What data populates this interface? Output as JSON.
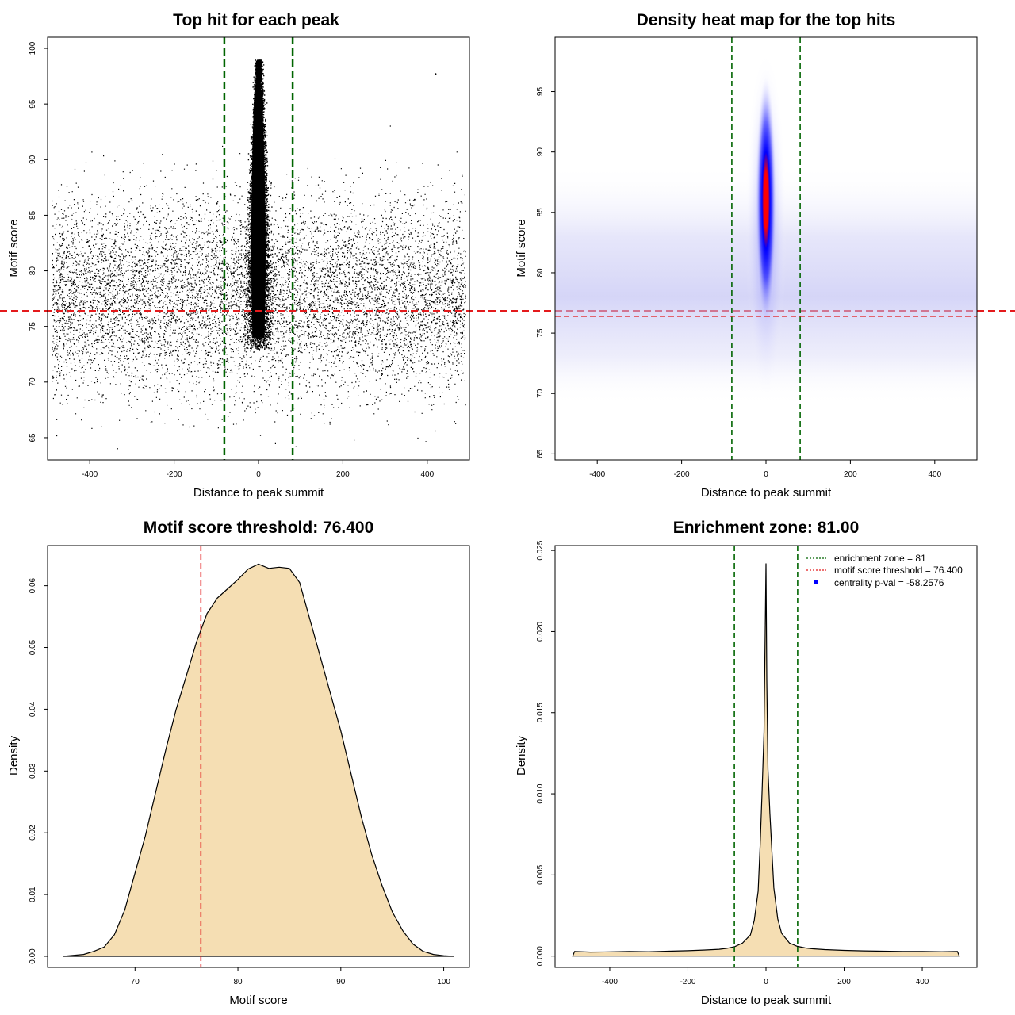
{
  "chart_data": [
    {
      "id": "scatter",
      "type": "scatter",
      "title": "Top hit for each peak",
      "xlabel": "Distance to peak summit",
      "ylabel": "Motif score",
      "xlim": [
        -500,
        500
      ],
      "ylim": [
        63,
        101
      ],
      "xticks": [
        "-400",
        "-200",
        "0",
        "200",
        "400"
      ],
      "yticks": [
        "65",
        "70",
        "75",
        "80",
        "85",
        "90",
        "95",
        "100"
      ],
      "vlines": [
        -81,
        81
      ],
      "hline": 76.4,
      "colors": {
        "points": "#000000",
        "vline": "#006400",
        "hline": "#e41a1c"
      },
      "description_of_points": "dense vertical cluster around distance 0 spanning scores ~73 to ~99; sparse uniform background from -490 to 490 with scores ~65 to ~92",
      "sample_points": [
        {
          "x": -470,
          "y": 78.5
        },
        {
          "x": -420,
          "y": 74.2
        },
        {
          "x": -350,
          "y": 81.3
        },
        {
          "x": -300,
          "y": 70.8
        },
        {
          "x": -240,
          "y": 85.6
        },
        {
          "x": -180,
          "y": 76.9
        },
        {
          "x": -120,
          "y": 72.4
        },
        {
          "x": -60,
          "y": 79.8
        },
        {
          "x": -10,
          "y": 88.5
        },
        {
          "x": 0,
          "y": 95.2
        },
        {
          "x": 5,
          "y": 82.1
        },
        {
          "x": 12,
          "y": 77.4
        },
        {
          "x": 60,
          "y": 80.7
        },
        {
          "x": 120,
          "y": 74.9
        },
        {
          "x": 180,
          "y": 83.6
        },
        {
          "x": 250,
          "y": 71.5
        },
        {
          "x": 310,
          "y": 78.2
        },
        {
          "x": 370,
          "y": 86.4
        },
        {
          "x": 420,
          "y": 97.7
        },
        {
          "x": 470,
          "y": 75.3
        }
      ]
    },
    {
      "id": "heatmap",
      "type": "heatmap",
      "title": "Density heat map for the top hits",
      "xlabel": "Distance to peak summit",
      "ylabel": "Motif score",
      "xlim": [
        -500,
        500
      ],
      "ylim": [
        64.5,
        99.5
      ],
      "xticks": [
        "-400",
        "-200",
        "0",
        "200",
        "400"
      ],
      "yticks": [
        "65",
        "70",
        "75",
        "80",
        "85",
        "90",
        "95"
      ],
      "vlines": [
        -81,
        81
      ],
      "hline": 76.4,
      "hotspot": {
        "x": 0,
        "y_center": 86,
        "y_range": [
          76,
          96
        ]
      },
      "colors": {
        "low": "#ffffff",
        "mid": "#0000ff",
        "high": "#ff0000",
        "vline": "#006400",
        "hline": "#e41a1c"
      }
    },
    {
      "id": "score-density",
      "type": "area",
      "title": "Motif score threshold: 76.400",
      "xlabel": "Motif score",
      "ylabel": "Density",
      "xlim": [
        61.5,
        102.5
      ],
      "ylim": [
        -0.0018,
        0.0665
      ],
      "xticks": [
        "70",
        "80",
        "90",
        "100"
      ],
      "yticks": [
        "0.00",
        "0.01",
        "0.02",
        "0.03",
        "0.04",
        "0.05",
        "0.06"
      ],
      "threshold": 76.4,
      "x": [
        63,
        65,
        66,
        67,
        68,
        69,
        70,
        71,
        72,
        73,
        74,
        75,
        76,
        77,
        78,
        79,
        80,
        81,
        82,
        83,
        84,
        85,
        86,
        87,
        88,
        89,
        90,
        91,
        92,
        93,
        94,
        95,
        96,
        97,
        98,
        99,
        100,
        101
      ],
      "y": [
        0.0,
        0.0003,
        0.0008,
        0.0015,
        0.0035,
        0.0075,
        0.0135,
        0.0195,
        0.0265,
        0.0335,
        0.04,
        0.0455,
        0.051,
        0.0555,
        0.058,
        0.0595,
        0.061,
        0.0627,
        0.0635,
        0.0628,
        0.063,
        0.0628,
        0.0605,
        0.0545,
        0.0485,
        0.0425,
        0.0365,
        0.0295,
        0.0225,
        0.0165,
        0.0115,
        0.0072,
        0.0042,
        0.002,
        0.0008,
        0.0003,
        0.0001,
        0.0
      ],
      "colors": {
        "fill": "#f5deb3",
        "line": "#000000",
        "threshold": "#e41a1c"
      }
    },
    {
      "id": "distance-density",
      "type": "area",
      "title": "Enrichment zone: 81.00",
      "xlabel": "Distance to peak summit",
      "ylabel": "Density",
      "xlim": [
        -540,
        540
      ],
      "ylim": [
        -0.0007,
        0.0253
      ],
      "xticks": [
        "-400",
        "-200",
        "0",
        "200",
        "400"
      ],
      "yticks": [
        "0.000",
        "0.005",
        "0.010",
        "0.015",
        "0.020",
        "0.025"
      ],
      "vlines": [
        -81,
        81
      ],
      "x": [
        -495,
        -490,
        -450,
        -400,
        -350,
        -300,
        -250,
        -200,
        -150,
        -120,
        -100,
        -80,
        -60,
        -40,
        -30,
        -20,
        -15,
        -10,
        -5,
        -2,
        0,
        2,
        5,
        10,
        15,
        20,
        30,
        40,
        60,
        80,
        100,
        120,
        150,
        200,
        250,
        300,
        350,
        400,
        450,
        490,
        495
      ],
      "y": [
        0.0,
        0.00028,
        0.00025,
        0.00026,
        0.00028,
        0.00027,
        0.0003,
        0.00033,
        0.00038,
        0.00042,
        0.00048,
        0.00058,
        0.0008,
        0.0013,
        0.0022,
        0.004,
        0.0068,
        0.0102,
        0.0138,
        0.02,
        0.0242,
        0.017,
        0.0115,
        0.0088,
        0.0065,
        0.0042,
        0.0023,
        0.0014,
        0.0008,
        0.0006,
        0.0005,
        0.00045,
        0.0004,
        0.00035,
        0.00032,
        0.0003,
        0.00028,
        0.00028,
        0.00027,
        0.00028,
        0.0
      ],
      "legend": [
        {
          "label": "enrichment zone = 81",
          "style": "dotted-line",
          "color": "#006400"
        },
        {
          "label": "motif score threshold = 76.400",
          "style": "dotted-line",
          "color": "#e41a1c"
        },
        {
          "label": "centrality p-val = -58.2576",
          "style": "dot",
          "color": "#0000ff"
        }
      ],
      "legend_position": "top-right",
      "colors": {
        "fill": "#f5deb3",
        "line": "#000000",
        "vline": "#006400"
      }
    }
  ]
}
